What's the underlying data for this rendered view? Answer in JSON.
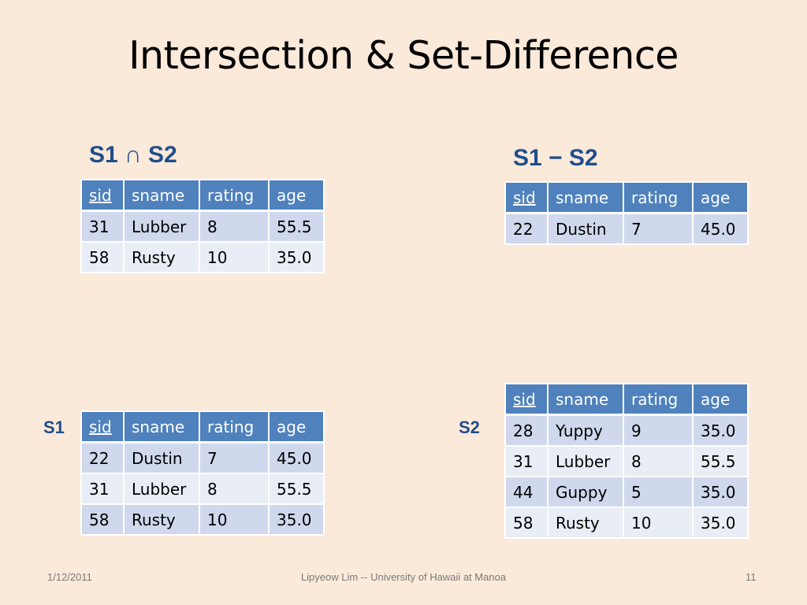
{
  "slide": {
    "title": "Intersection & Set-Difference",
    "footer_date": "1/12/2011",
    "footer_center": "Lipyeow Lim -- University of Hawaii at Manoa",
    "page_number": "11"
  },
  "labels": {
    "intersection": "S1 ∩ S2",
    "difference": "S1 − S2",
    "s1": "S1",
    "s2": "S2"
  },
  "columns": [
    "sid",
    "sname",
    "rating",
    "age"
  ],
  "tables": {
    "intersection": [
      [
        "31",
        "Lubber",
        "8",
        "55.5"
      ],
      [
        "58",
        "Rusty",
        "10",
        "35.0"
      ]
    ],
    "difference": [
      [
        "22",
        "Dustin",
        "7",
        "45.0"
      ]
    ],
    "s1": [
      [
        "22",
        "Dustin",
        "7",
        "45.0"
      ],
      [
        "31",
        "Lubber",
        "8",
        "55.5"
      ],
      [
        "58",
        "Rusty",
        "10",
        "35.0"
      ]
    ],
    "s2": [
      [
        "28",
        "Yuppy",
        "9",
        "35.0"
      ],
      [
        "31",
        "Lubber",
        "8",
        "55.5"
      ],
      [
        "44",
        "Guppy",
        "5",
        "35.0"
      ],
      [
        "58",
        "Rusty",
        "10",
        "35.0"
      ]
    ]
  }
}
